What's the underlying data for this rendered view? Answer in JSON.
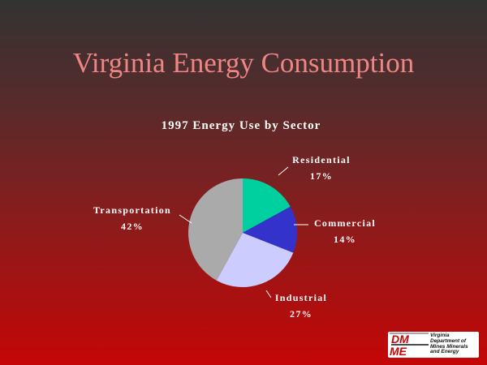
{
  "slide": {
    "title": "Virginia Energy Consumption"
  },
  "logo": {
    "mark": "DMME",
    "lines": [
      "Virginia",
      "Department of",
      "Mines Minerals",
      "and Energy"
    ]
  },
  "colors": {
    "title": "#f08585",
    "residential": "#00d0a0",
    "commercial": "#3333cc",
    "industrial": "#ccccff",
    "transportation": "#aaaaaa"
  },
  "chart_data": {
    "type": "pie",
    "title": "1997 Energy Use by Sector",
    "slices": [
      {
        "label": "Residential",
        "pct_label": "17%",
        "value": 17,
        "color": "#00d0a0"
      },
      {
        "label": "Commercial",
        "pct_label": "14%",
        "value": 14,
        "color": "#3333cc"
      },
      {
        "label": "Industrial",
        "pct_label": "27%",
        "value": 27,
        "color": "#ccccff"
      },
      {
        "label": "Transportation",
        "pct_label": "42%",
        "value": 42,
        "color": "#aaaaaa"
      }
    ],
    "start_angle": "12 o'clock",
    "direction": "clockwise"
  }
}
